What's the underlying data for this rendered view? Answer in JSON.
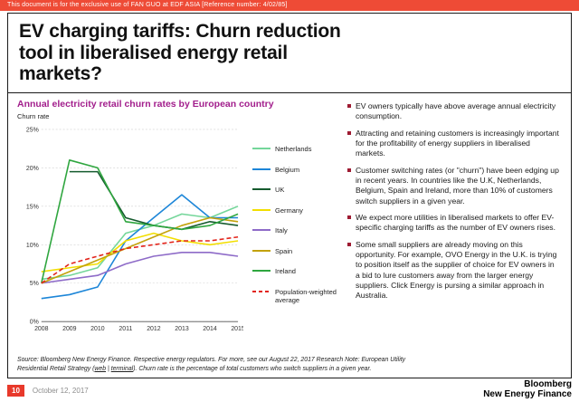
{
  "confidential_bar": {
    "text": "This document is for the exclusive use of FAN GUO at EDF ASIA [Reference number: 4/02/85]"
  },
  "title": "EV charging tariffs: Churn reduction tool in liberalised energy retail markets?",
  "chart": {
    "header": "Annual electricity retail churn rates by European country",
    "y_axis_label": "Churn rate"
  },
  "chart_data": {
    "type": "line",
    "title": "Annual electricity retail churn rates by European country",
    "xlabel": "",
    "ylabel": "Churn rate",
    "ylim": [
      0,
      25
    ],
    "y_tick_step": 5,
    "y_tick_format": "percent",
    "grid": true,
    "legend_position": "right",
    "categories": [
      "2008",
      "2009",
      "2010",
      "2011",
      "2012",
      "2013",
      "2014",
      "2015"
    ],
    "series": [
      {
        "name": "Netherlands",
        "color": "#74D69A",
        "dashed": false,
        "values": [
          5.5,
          6,
          7,
          11.5,
          12.5,
          14,
          13.5,
          15
        ]
      },
      {
        "name": "Belgium",
        "color": "#1D86D8",
        "dashed": false,
        "values": [
          3,
          3.5,
          4.5,
          10.5,
          13.5,
          16.5,
          13.5,
          13.5
        ]
      },
      {
        "name": "UK",
        "color": "#155B2E",
        "dashed": false,
        "values": [
          null,
          19.5,
          19.5,
          13.5,
          12.5,
          12,
          13,
          12.5
        ]
      },
      {
        "name": "Germany",
        "color": "#F2DE00",
        "dashed": false,
        "values": [
          6.5,
          7,
          7.5,
          10.5,
          11.5,
          10.5,
          10,
          10.5
        ]
      },
      {
        "name": "Italy",
        "color": "#8E6BC8",
        "dashed": false,
        "values": [
          5,
          5.5,
          6,
          7.5,
          8.5,
          9,
          9,
          8.5
        ]
      },
      {
        "name": "Spain",
        "color": "#C3A20B",
        "dashed": false,
        "values": [
          5,
          6.5,
          8,
          9.5,
          11,
          12.5,
          13.5,
          13
        ]
      },
      {
        "name": "Ireland",
        "color": "#2FA63F",
        "dashed": false,
        "values": [
          5,
          21,
          20,
          13,
          12.5,
          12,
          12.5,
          14
        ]
      },
      {
        "name": "Population-weighted average",
        "color": "#E2231A",
        "dashed": true,
        "values": [
          5,
          7.5,
          8.5,
          9.5,
          10,
          10.5,
          10.5,
          11
        ]
      }
    ]
  },
  "bullets": [
    "EV owners typically have above average annual electricity consumption.",
    "Attracting and retaining customers is increasingly important for the profitability of energy suppliers in liberalised markets.",
    "Customer switching rates (or \"churn\") have been edging up in recent years. In countries like the U.K, Netherlands, Belgium, Spain and Ireland, more than 10% of customers switch suppliers in a given year.",
    "We expect more utilities in liberalised markets to offer EV-specific charging tariffs as the number of EV owners rises.",
    "Some small suppliers are already moving on this opportunity. For example, OVO Energy in the U.K. is trying to position itself as the supplier of choice for EV owners in a bid to lure customers away from the larger energy suppliers. Click Energy is pursing a similar approach in Australia."
  ],
  "source": {
    "prefix": "Source: Bloomberg New Energy Finance. Respective energy regulators. For more, see our August 22, 2017 Research Note: European Utility Residential Retail Strategy (",
    "web_link": "web",
    "separator": " | ",
    "terminal_link": "terminal",
    "suffix": "). Churn rate is the percentage of total customers who switch suppliers in a given year."
  },
  "footer": {
    "page_number": "10",
    "date": "October 12, 2017",
    "brand_line1": "Bloomberg",
    "brand_line2": "New Energy Finance"
  },
  "colors": {
    "topbar_red": "#EE4B36",
    "accent_red": "#E8392B",
    "header_purple": "#A21E8C",
    "bullet_maroon": "#9E1B32"
  }
}
